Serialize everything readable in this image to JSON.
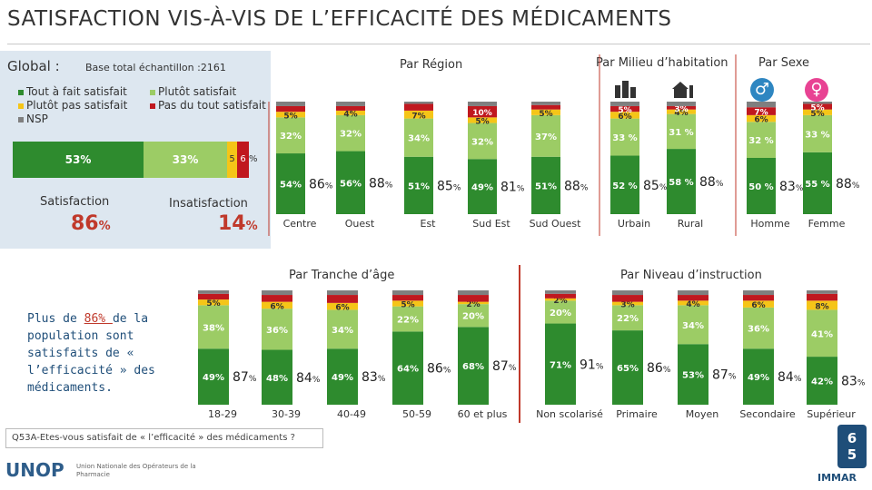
{
  "title": "SATISFACTION VIS-À-VIS DE L’EFFICACITÉ DES MÉDICAMENTS",
  "global": {
    "label": "Global :",
    "base": "Base total échantillon :2161",
    "legend": [
      "Tout à fait satisfait",
      "Plutôt satisfait",
      "Plutôt pas satisfait",
      "Pas du tout satisfait",
      "NSP"
    ],
    "bar": {
      "tout": "53%",
      "plutot": "33%",
      "pas": "5",
      "pas_tout": "6",
      "pct_sign": "%"
    },
    "satisfaction_label": "Satisfaction",
    "satisfaction_value": "86",
    "insatisfaction_label": "Insatisfaction",
    "insatisfaction_value": "14",
    "pct": "%"
  },
  "sections": {
    "region": "Par Région",
    "milieu": "Par Milieu d’habitation",
    "sexe": "Par Sexe",
    "age": "Par Tranche d’âge",
    "niveau": "Par Niveau d’instruction"
  },
  "colors": {
    "tout": "#2e8b2e",
    "plutot": "#9ccc65",
    "pas": "#f5c518",
    "pas_tout": "#c0181f",
    "nsp": "#7f7f7f",
    "accent": "#c0392b",
    "blue": "#1f4e79",
    "panel": "#dde7f0"
  },
  "chart_data": [
    {
      "type": "bar",
      "title": "Par Région",
      "categories": [
        "Centre",
        "Ouest",
        "Est",
        "Sud Est",
        "Sud Ouest"
      ],
      "series": [
        {
          "name": "Tout à fait satisfait",
          "labels": [
            "54%",
            "56%",
            "51%",
            "49%",
            "51%"
          ],
          "values": [
            54,
            56,
            51,
            49,
            51
          ]
        },
        {
          "name": "Plutôt satisfait",
          "labels": [
            "32%",
            "32%",
            "34%",
            "32%",
            "37%"
          ],
          "values": [
            32,
            32,
            34,
            32,
            37
          ]
        },
        {
          "name": "Plutôt pas satisfait",
          "labels": [
            "5%",
            "4%",
            "7%",
            "5%",
            "5%"
          ],
          "values": [
            5,
            4,
            7,
            5,
            5
          ]
        },
        {
          "name": "Pas du tout satisfait",
          "labels": [
            "",
            "",
            "",
            "10%",
            ""
          ],
          "values": [
            5,
            4,
            6,
            10,
            4
          ]
        },
        {
          "name": "NSP",
          "values": [
            4,
            4,
            2,
            4,
            3
          ]
        }
      ],
      "totals": [
        "86",
        "88",
        "85",
        "81",
        "88"
      ]
    },
    {
      "type": "bar",
      "title": "Par Milieu d’habitation",
      "categories": [
        "Urbain",
        "Rural"
      ],
      "series": [
        {
          "name": "Tout à fait satisfait",
          "labels": [
            "52 %",
            "58 %"
          ],
          "values": [
            52,
            58
          ]
        },
        {
          "name": "Plutôt satisfait",
          "labels": [
            "33 %",
            "31 %"
          ],
          "values": [
            33,
            31
          ]
        },
        {
          "name": "Plutôt pas satisfait",
          "labels": [
            "6%",
            "4%"
          ],
          "values": [
            6,
            4
          ]
        },
        {
          "name": "Pas du tout satisfait",
          "labels": [
            "5%",
            "3%"
          ],
          "values": [
            5,
            3
          ]
        },
        {
          "name": "NSP",
          "values": [
            4,
            4
          ]
        }
      ],
      "totals": [
        "85",
        "88"
      ]
    },
    {
      "type": "bar",
      "title": "Par Sexe",
      "categories": [
        "Homme",
        "Femme"
      ],
      "series": [
        {
          "name": "Tout à fait satisfait",
          "labels": [
            "50 %",
            "55 %"
          ],
          "values": [
            50,
            55
          ]
        },
        {
          "name": "Plutôt satisfait",
          "labels": [
            "32 %",
            "33 %"
          ],
          "values": [
            32,
            33
          ]
        },
        {
          "name": "Plutôt pas satisfait",
          "labels": [
            "6%",
            "5%"
          ],
          "values": [
            6,
            5
          ]
        },
        {
          "name": "Pas du tout satisfait",
          "labels": [
            "7%",
            "5%"
          ],
          "values": [
            7,
            5
          ]
        },
        {
          "name": "NSP",
          "values": [
            5,
            2
          ]
        }
      ],
      "totals": [
        "83",
        "88"
      ]
    },
    {
      "type": "bar",
      "title": "Par Tranche d’âge",
      "categories": [
        "18-29",
        "30-39",
        "40-49",
        "50-59",
        "60 et plus"
      ],
      "series": [
        {
          "name": "Tout à fait satisfait",
          "labels": [
            "49%",
            "48%",
            "49%",
            "64%",
            "68%"
          ],
          "values": [
            49,
            48,
            49,
            64,
            68
          ]
        },
        {
          "name": "Plutôt satisfait",
          "labels": [
            "38%",
            "36%",
            "34%",
            "22%",
            "20%"
          ],
          "values": [
            38,
            36,
            34,
            22,
            20
          ]
        },
        {
          "name": "Plutôt pas satisfait",
          "labels": [
            "5%",
            "6%",
            "6%",
            "5%",
            "2%"
          ],
          "values": [
            5,
            6,
            6,
            5,
            2
          ]
        },
        {
          "name": "Pas du tout satisfait",
          "labels": [
            "",
            "",
            "",
            "",
            ""
          ],
          "values": [
            5,
            6,
            7,
            5,
            6
          ]
        },
        {
          "name": "NSP",
          "values": [
            3,
            4,
            4,
            4,
            4
          ]
        }
      ],
      "totals": [
        "87",
        "84",
        "83",
        "86",
        "87"
      ]
    },
    {
      "type": "bar",
      "title": "Par Niveau d’instruction",
      "categories": [
        "Non scolarisé",
        "Primaire",
        "Moyen",
        "Secondaire",
        "Supérieur"
      ],
      "series": [
        {
          "name": "Tout à fait satisfait",
          "labels": [
            "71%",
            "65%",
            "53%",
            "49%",
            "42%"
          ],
          "values": [
            71,
            65,
            53,
            49,
            42
          ]
        },
        {
          "name": "Plutôt satisfait",
          "labels": [
            "20%",
            "22%",
            "34%",
            "36%",
            "41%"
          ],
          "values": [
            20,
            22,
            34,
            36,
            41
          ]
        },
        {
          "name": "Plutôt pas satisfait",
          "labels": [
            "2%",
            "3%",
            "4%",
            "6%",
            "8%"
          ],
          "values": [
            2,
            3,
            4,
            6,
            8
          ]
        },
        {
          "name": "Pas du tout satisfait",
          "labels": [
            "",
            "",
            "",
            "",
            ""
          ],
          "values": [
            4,
            6,
            5,
            5,
            6
          ]
        },
        {
          "name": "NSP",
          "values": [
            3,
            4,
            4,
            4,
            3
          ]
        }
      ],
      "totals": [
        "91",
        "86",
        "87",
        "84",
        "83"
      ]
    }
  ],
  "note": {
    "prefix": "Plus de ",
    "highlight": "86% ",
    "suffix": "de la population sont satisfaits de « l’efficacité » des médicaments."
  },
  "question": "Q53A-Etes-vous satisfait de « l’efficacité » des médicaments ?",
  "page_number": [
    "6",
    "5"
  ],
  "logo": {
    "name": "UNOP",
    "sub": "Union Nationale des Opérateurs de la Pharmacie"
  },
  "immar": "IMMAR"
}
